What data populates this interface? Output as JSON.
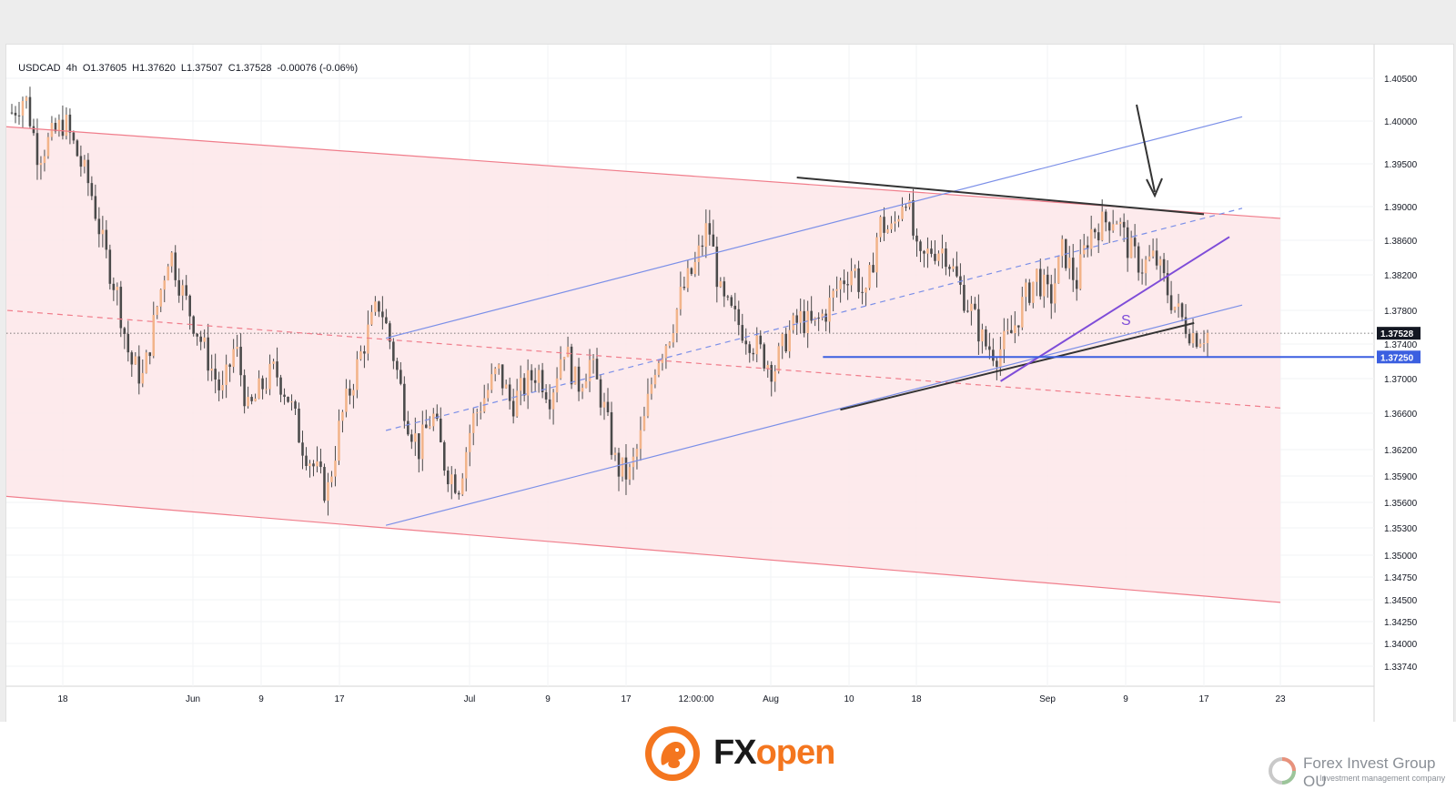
{
  "header": {
    "symbol": "USDCAD",
    "interval": "4h",
    "open": "O1.37605",
    "high": "H1.37620",
    "low": "L1.37507",
    "close": "C1.37528",
    "change": "-0.00076 (-0.06%)"
  },
  "chart_data": {
    "type": "candlestick",
    "symbol": "USDCAD",
    "timeframe": "4h",
    "x_ticks": [
      "18",
      "Jun",
      "9",
      "17",
      "Jul",
      "9",
      "17",
      "12:00:00",
      "Aug",
      "10",
      "18",
      "Sep",
      "9",
      "17",
      "23"
    ],
    "y_ticks": [
      "1.40500",
      "1.40000",
      "1.39500",
      "1.39000",
      "1.38600",
      "1.38200",
      "1.37800",
      "1.37400",
      "1.37000",
      "1.36600",
      "1.36200",
      "1.35900",
      "1.35600",
      "1.35300",
      "1.35000",
      "1.34750",
      "1.34500",
      "1.34250",
      "1.34000",
      "1.33740"
    ],
    "y_tick_values": [
      1.405,
      1.4,
      1.395,
      1.39,
      1.386,
      1.382,
      1.378,
      1.374,
      1.37,
      1.366,
      1.362,
      1.359,
      1.356,
      1.353,
      1.35,
      1.3475,
      1.345,
      1.3425,
      1.34,
      1.3374
    ],
    "current_price_label": "1.37528",
    "current_price": 1.37528,
    "support_label": "1.37250",
    "support_level": 1.3725,
    "annotation_text": "S",
    "price_path": [
      1.401,
      1.403,
      1.396,
      1.398,
      1.4,
      1.396,
      1.392,
      1.385,
      1.38,
      1.372,
      1.37,
      1.378,
      1.385,
      1.38,
      1.376,
      1.372,
      1.368,
      1.374,
      1.366,
      1.369,
      1.371,
      1.368,
      1.363,
      1.36,
      1.357,
      1.365,
      1.37,
      1.375,
      1.379,
      1.373,
      1.366,
      1.362,
      1.366,
      1.36,
      1.358,
      1.365,
      1.368,
      1.371,
      1.367,
      1.369,
      1.371,
      1.368,
      1.374,
      1.369,
      1.372,
      1.367,
      1.36,
      1.359,
      1.364,
      1.372,
      1.375,
      1.38,
      1.383,
      1.388,
      1.379,
      1.377,
      1.375,
      1.373,
      1.371,
      1.375,
      1.377,
      1.376,
      1.378,
      1.381,
      1.383,
      1.379,
      1.388,
      1.387,
      1.392,
      1.383,
      1.385,
      1.385,
      1.381,
      1.378,
      1.374,
      1.373,
      1.375,
      1.379,
      1.382,
      1.379,
      1.385,
      1.381,
      1.387,
      1.388,
      1.389,
      1.385,
      1.383,
      1.384,
      1.38,
      1.377,
      1.375,
      1.37528
    ],
    "lines": [
      {
        "name": "Descending channel upper",
        "color": "#f07d8b",
        "style": "solid",
        "from": [
          "Apr 27",
          1.4005
        ],
        "to": [
          "Sep 23",
          1.3886
        ]
      },
      {
        "name": "Descending channel lower",
        "color": "#f07d8b",
        "style": "solid",
        "from": [
          "Apr 27",
          1.358
        ],
        "to": [
          "Sep 23",
          1.3447
        ]
      },
      {
        "name": "Channel median",
        "color": "#f07d8b",
        "style": "dashed",
        "from": [
          "Apr 27",
          1.3792
        ],
        "to": [
          "Sep 23",
          1.3666
        ]
      },
      {
        "name": "Ascending channel upper",
        "color": "#7b8fe8",
        "style": "solid",
        "from": [
          "Jun 22",
          1.3747
        ],
        "to": [
          "Sep 20",
          1.4005
        ]
      },
      {
        "name": "Ascending channel median",
        "color": "#7b8fe8",
        "style": "dashed",
        "from": [
          "Jun 22",
          1.3641
        ],
        "to": [
          "Sep 20",
          1.3898
        ]
      },
      {
        "name": "Ascending channel lower",
        "color": "#7b8fe8",
        "style": "solid",
        "from": [
          "Jun 22",
          1.3533
        ],
        "to": [
          "Sep 20",
          1.3786
        ]
      },
      {
        "name": "Resistance (black)",
        "color": "#333333",
        "style": "solid",
        "from": [
          "Aug 4",
          1.3934
        ],
        "to": [
          "Sep 17",
          1.3891
        ]
      },
      {
        "name": "Support trendline (black)",
        "color": "#333333",
        "style": "solid",
        "from": [
          "Aug 9",
          1.3664
        ],
        "to": [
          "Sep 16",
          1.3765
        ]
      },
      {
        "name": "Purple trendline",
        "color": "#7e4cd8",
        "style": "solid",
        "from": [
          "Aug 27",
          1.3697
        ],
        "to": [
          "Sep 19",
          1.3864
        ]
      },
      {
        "name": "Horizontal support",
        "color": "#3b5fe0",
        "style": "solid",
        "value": 1.3725
      }
    ],
    "shaded_channel_color": "#fde8ea",
    "arrow_annotation": {
      "color": "#333333",
      "direction": "down",
      "target": "Sep 11 resistance"
    }
  },
  "footer": {
    "brand_fx": "FX",
    "brand_open": "open",
    "company_name": "Forex Invest Group OU",
    "company_sub": "Investment management company"
  }
}
